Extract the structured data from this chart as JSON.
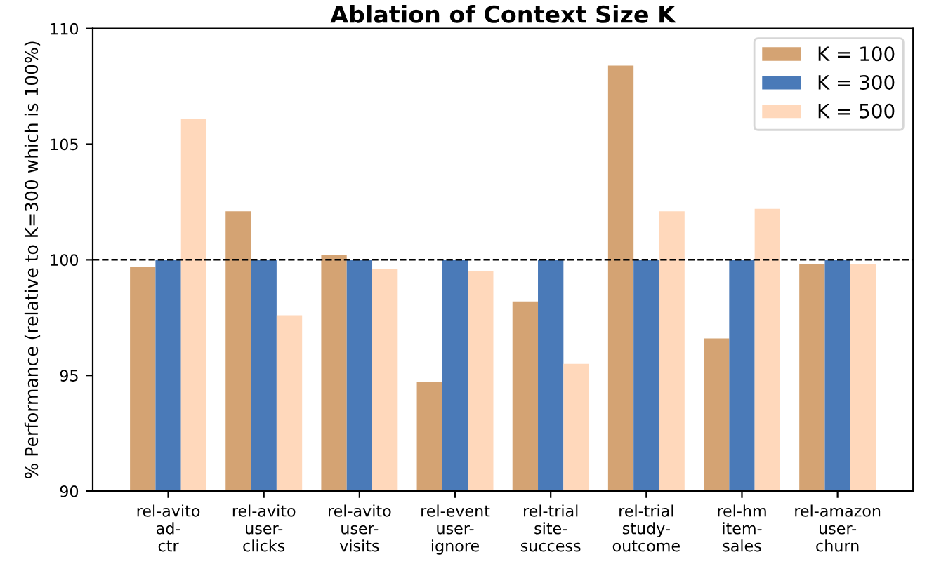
{
  "chart_data": {
    "type": "bar",
    "title": "Ablation of Context Size K",
    "ylabel": "% Performance (relative to K=300 which is 100%)",
    "categories": [
      "rel-avito\nad-\nctr",
      "rel-avito\nuser-\nclicks",
      "rel-avito\nuser-\nvisits",
      "rel-event\nuser-\nignore",
      "rel-trial\nsite-\nsuccess",
      "rel-trial\nstudy-\noutcome",
      "rel-hm\nitem-\nsales",
      "rel-amazon\nuser-\nchurn"
    ],
    "series": [
      {
        "name": "K = 100",
        "color": "#d4a373",
        "values": [
          99.7,
          102.1,
          100.2,
          94.7,
          98.2,
          108.4,
          96.6,
          99.8
        ]
      },
      {
        "name": "K = 300",
        "color": "#4a7ab8",
        "values": [
          100,
          100,
          100,
          100,
          100,
          100,
          100,
          100
        ]
      },
      {
        "name": "K = 500",
        "color": "#ffd8bb",
        "values": [
          106.1,
          97.6,
          99.6,
          99.5,
          95.5,
          102.1,
          102.2,
          99.8
        ]
      }
    ],
    "ylim": [
      90,
      110
    ],
    "yticks": [
      90,
      95,
      100,
      105,
      110
    ],
    "ref_lines": [
      {
        "axis": "y",
        "value": 100,
        "color": "#000000",
        "line_style": "dashed"
      }
    ],
    "legend": "upper right",
    "grid": false
  }
}
